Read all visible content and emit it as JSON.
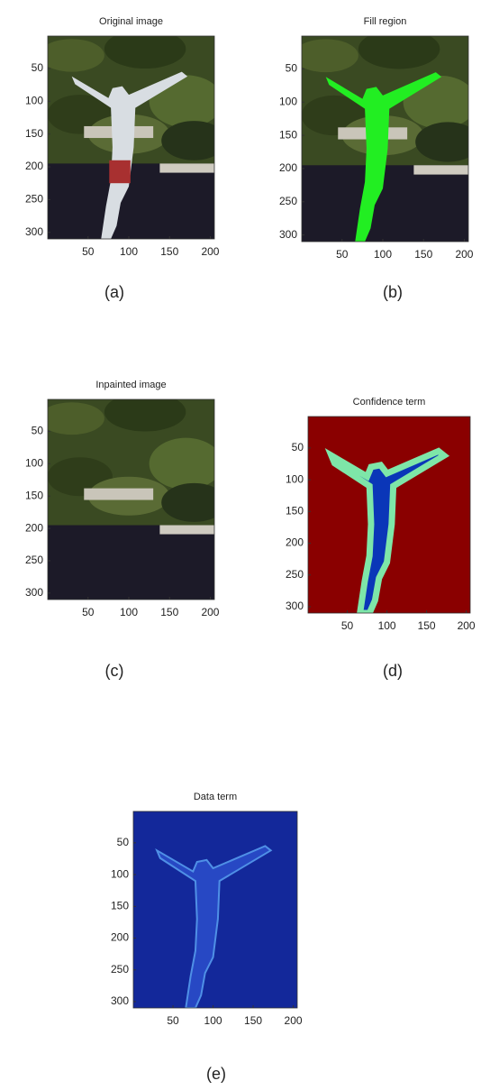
{
  "panels": [
    {
      "title": "Original image",
      "caption": "(a)",
      "xlim": [
        0.5,
        205
      ],
      "ylim": [
        0.5,
        310
      ],
      "xticks": [
        50,
        100,
        150,
        200
      ],
      "yticks": [
        50,
        100,
        150,
        200,
        250,
        300
      ]
    },
    {
      "title": "Fill region",
      "caption": "(b)",
      "xlim": [
        0.5,
        205
      ],
      "ylim": [
        0.5,
        310
      ],
      "xticks": [
        50,
        100,
        150,
        200
      ],
      "yticks": [
        50,
        100,
        150,
        200,
        250,
        300
      ]
    },
    {
      "title": "Inpainted image",
      "caption": "(c)",
      "xlim": [
        0.5,
        205
      ],
      "ylim": [
        0.5,
        310
      ],
      "xticks": [
        50,
        100,
        150,
        200
      ],
      "yticks": [
        50,
        100,
        150,
        200,
        250,
        300
      ]
    },
    {
      "title": "Confidence term",
      "caption": "(d)",
      "xlim": [
        0.5,
        205
      ],
      "ylim": [
        0.5,
        310
      ],
      "xticks": [
        50,
        100,
        150,
        200
      ],
      "yticks": [
        50,
        100,
        150,
        200,
        250,
        300
      ]
    },
    {
      "title": "Data term",
      "caption": "(e)",
      "xlim": [
        0.5,
        205
      ],
      "ylim": [
        0.5,
        310
      ],
      "xticks": [
        50,
        100,
        150,
        200
      ],
      "yticks": [
        50,
        100,
        150,
        200,
        250,
        300
      ]
    }
  ]
}
